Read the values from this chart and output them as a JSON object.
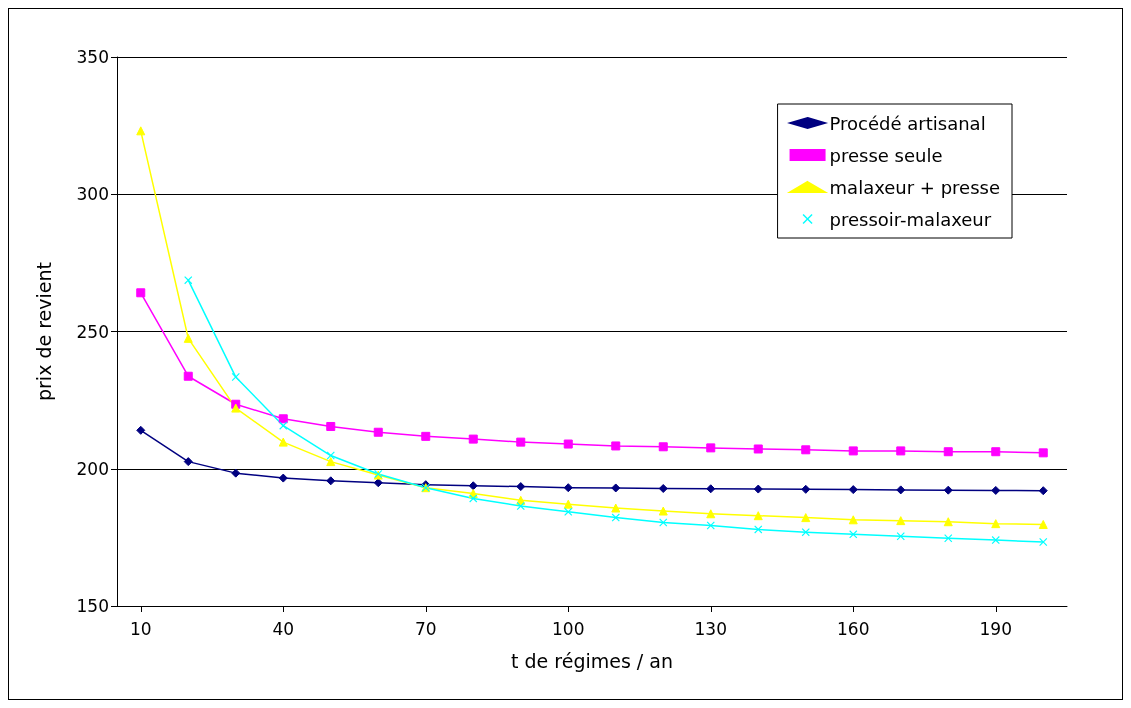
{
  "chart_data": {
    "type": "line",
    "xlabel": "t de régimes / an",
    "ylabel": "prix de revient",
    "x": [
      10,
      20,
      30,
      40,
      50,
      60,
      70,
      80,
      90,
      100,
      110,
      120,
      130,
      140,
      150,
      160,
      170,
      180,
      190,
      200
    ],
    "xlim": [
      5,
      205
    ],
    "xticks": [
      10,
      40,
      70,
      100,
      130,
      160,
      190
    ],
    "ylim": [
      150,
      350
    ],
    "yticks": [
      150,
      200,
      250,
      300,
      350
    ],
    "grid": "y",
    "legend": "top right",
    "series": [
      {
        "name": "Procédé artisanal",
        "color": "#000080",
        "marker": "diamond",
        "values": [
          214,
          202.6,
          198.4,
          196.6,
          195.6,
          194.9,
          194.2,
          193.8,
          193.5,
          193.1,
          193.0,
          192.8,
          192.7,
          192.6,
          192.5,
          192.4,
          192.3,
          192.2,
          192.1,
          192.0
        ]
      },
      {
        "name": "presse seule",
        "color": "#ff00ff",
        "marker": "square",
        "values": [
          264.1,
          233.7,
          223.5,
          218.2,
          215.4,
          213.3,
          211.8,
          210.8,
          209.7,
          209.0,
          208.3,
          208.0,
          207.6,
          207.2,
          206.9,
          206.5,
          206.5,
          206.2,
          206.2,
          205.8
        ]
      },
      {
        "name": "malaxeur + presse",
        "color": "#ffff00",
        "marker": "triangle",
        "values": [
          323.1,
          247.5,
          222.1,
          209.7,
          202.6,
          197.7,
          193.1,
          191.0,
          188.5,
          187.1,
          185.7,
          184.6,
          183.6,
          182.9,
          182.2,
          181.4,
          181.1,
          180.7,
          180.0,
          179.7
        ]
      },
      {
        "name": "pressoir-malaxeur",
        "color": "#00ffff",
        "marker": "cross",
        "values": [
          null,
          268.7,
          233.4,
          215.7,
          204.8,
          198.1,
          193.1,
          189.2,
          186.4,
          184.3,
          182.2,
          180.4,
          179.3,
          177.9,
          176.9,
          176.1,
          175.4,
          174.7,
          174.0,
          173.3
        ]
      }
    ]
  }
}
